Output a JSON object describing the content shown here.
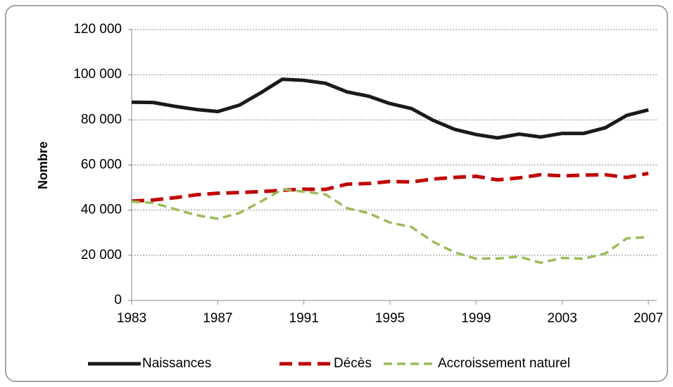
{
  "chart_data": {
    "type": "line",
    "y_label": "Nombre",
    "x": [
      1983,
      1984,
      1985,
      1986,
      1987,
      1988,
      1989,
      1990,
      1991,
      1992,
      1993,
      1994,
      1995,
      1996,
      1997,
      1998,
      1999,
      2000,
      2001,
      2002,
      2003,
      2004,
      2005,
      2006,
      2007
    ],
    "series": [
      {
        "name": "Naissances",
        "color": "#1a1a1a",
        "dash": false,
        "values": [
          87800,
          87700,
          86000,
          84600,
          83700,
          86500,
          92000,
          98000,
          97500,
          96200,
          92400,
          90500,
          87200,
          85000,
          79800,
          75800,
          73500,
          72000,
          73700,
          72400,
          74000,
          74000,
          76500,
          82000,
          84400
        ]
      },
      {
        "name": "Décès",
        "color": "#c00000",
        "dash": true,
        "values": [
          44000,
          44500,
          45500,
          46800,
          47500,
          47800,
          48200,
          48800,
          49300,
          49200,
          51500,
          51800,
          52700,
          52500,
          53800,
          54500,
          55000,
          53400,
          54300,
          55700,
          55200,
          55500,
          55700,
          54500,
          56300
        ]
      },
      {
        "name": "Accroissement naturel",
        "color": "#9bbb59",
        "dash": true,
        "values": [
          43800,
          43200,
          40500,
          37800,
          36200,
          38700,
          43800,
          49200,
          48200,
          47000,
          40900,
          38700,
          34500,
          32500,
          26000,
          21300,
          18500,
          18600,
          19400,
          16700,
          18800,
          18500,
          20800,
          27500,
          28100
        ]
      }
    ],
    "xlim": [
      1983,
      2007
    ],
    "xticks": [
      1983,
      1987,
      1991,
      1995,
      1999,
      2003,
      2007
    ],
    "ylim": [
      0,
      120000
    ],
    "yticks": [
      0,
      {
        "value": 20000,
        "label": "20 000"
      },
      {
        "value": 40000,
        "label": "40 000"
      },
      {
        "value": 60000,
        "label": "60 000"
      },
      {
        "value": 80000,
        "label": "80 000"
      },
      {
        "value": 100000,
        "label": "100 000"
      },
      {
        "value": 120000,
        "label": "120 000"
      }
    ],
    "grid": true,
    "legend": "bottom"
  }
}
